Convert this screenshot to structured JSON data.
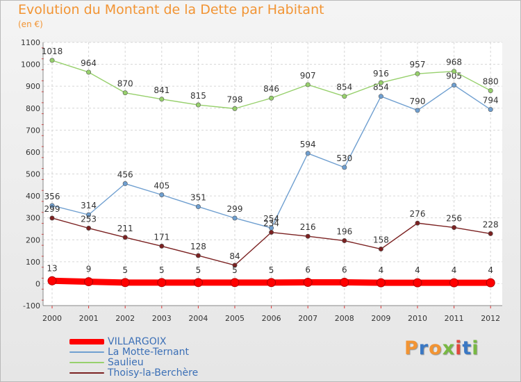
{
  "title": "Evolution du Montant de la Dette par Habitant",
  "subtitle": "(en €)",
  "logo": {
    "text": "Proxiti",
    "colors": [
      "#f29433",
      "#3a78c4",
      "#f29433",
      "#78b843",
      "#e2483d",
      "#3a78c4",
      "#78b843"
    ]
  },
  "chart_data": {
    "type": "line",
    "title": "Evolution du Montant de la Dette par Habitant",
    "ylabel": "(en €)",
    "xlabel": "",
    "ylim": [
      -100,
      1100
    ],
    "yticks": [
      -100,
      0,
      100,
      200,
      300,
      400,
      500,
      600,
      700,
      800,
      900,
      1000,
      1100
    ],
    "grid": true,
    "legend_placement": "bottom-left",
    "x": [
      "2000",
      "2001",
      "2002",
      "2003",
      "2004",
      "2005",
      "2006",
      "2007",
      "2008",
      "2009",
      "2010",
      "2011",
      "2012"
    ],
    "series": [
      {
        "name": "VILLARGOIX",
        "color": "#ff0000",
        "highlight": true,
        "values": [
          13,
          9,
          5,
          5,
          5,
          5,
          5,
          6,
          6,
          4,
          4,
          4,
          4
        ]
      },
      {
        "name": "La Motte-Ternant",
        "color": "#6f9fd0",
        "highlight": false,
        "values": [
          356,
          314,
          456,
          405,
          351,
          299,
          254,
          594,
          530,
          854,
          790,
          905,
          794
        ]
      },
      {
        "name": "Saulieu",
        "color": "#97d06c",
        "highlight": false,
        "values": [
          1018,
          964,
          870,
          841,
          815,
          798,
          846,
          907,
          854,
          916,
          957,
          968,
          880
        ]
      },
      {
        "name": "Thoisy-la-Berchère",
        "color": "#7b2121",
        "highlight": false,
        "values": [
          299,
          253,
          211,
          171,
          128,
          84,
          234,
          216,
          196,
          158,
          276,
          256,
          228
        ]
      }
    ]
  }
}
